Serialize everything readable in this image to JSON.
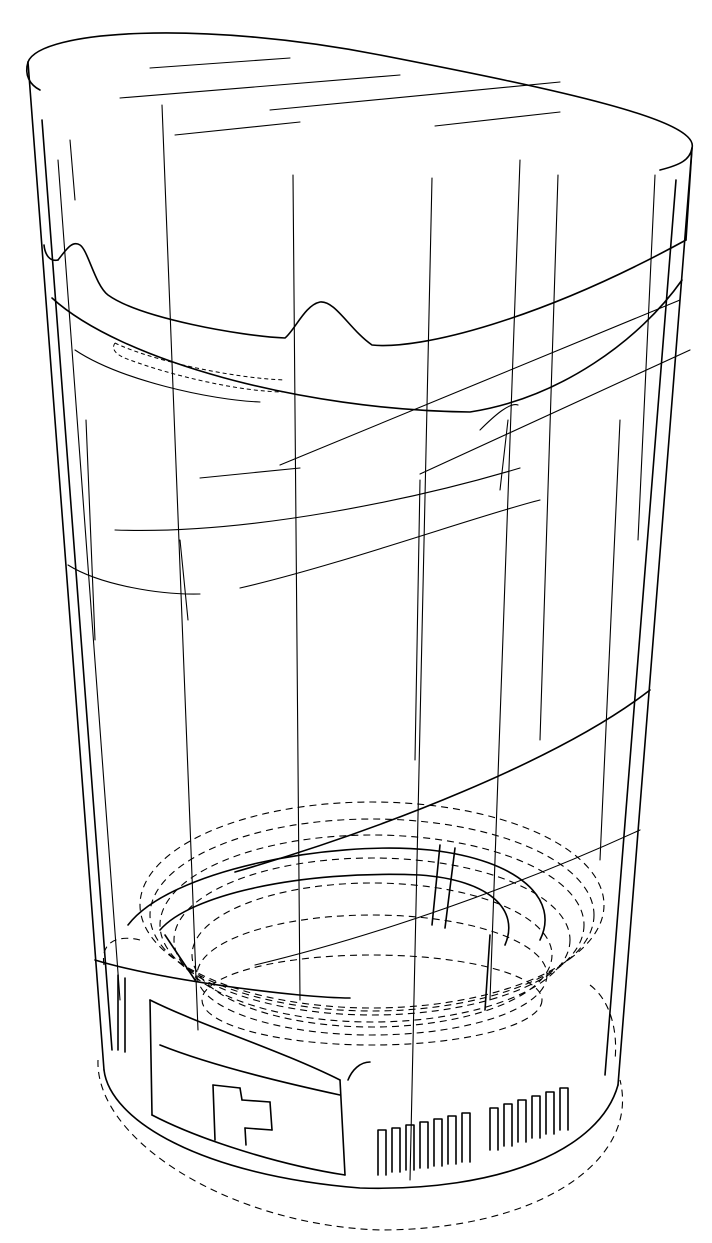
{
  "figure": {
    "background": "#ffffff",
    "line_color": "#000000"
  }
}
